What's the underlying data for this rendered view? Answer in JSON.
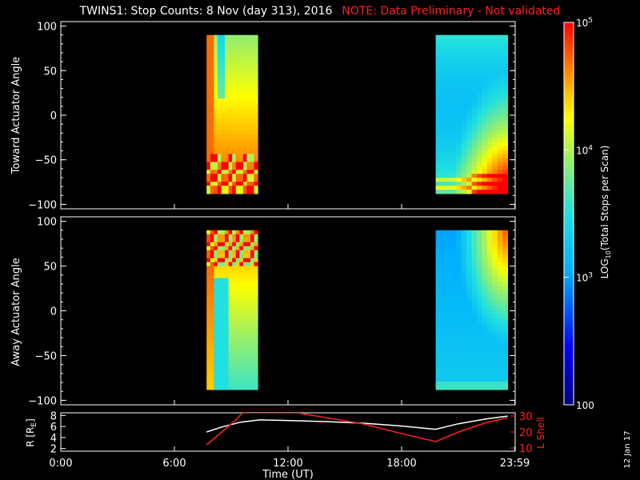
{
  "header": {
    "title": "TWINS1: Stop Counts:  8 Nov (day 313), 2016",
    "note": "NOTE: Data Preliminary - Not validated"
  },
  "side_date": "12 Jan 17",
  "chart_data": [
    {
      "type": "heatmap",
      "panel": "toward",
      "ylabel": "Toward Actuator Angle",
      "ylim": [
        -105,
        105
      ],
      "yticks": [
        "100",
        "50",
        "0",
        "-50",
        "-100"
      ],
      "xlim": [
        0,
        24
      ],
      "blocks": [
        {
          "x_start_hours": 7.7,
          "x_end_hours": 10.4,
          "y_range": [
            -88,
            90
          ],
          "description_levels": "log10 counts ~3.5 top to ~4.9 bottom"
        },
        {
          "x_start_hours": 19.8,
          "x_end_hours": 23.6,
          "y_range": [
            -88,
            90
          ],
          "description_levels": "log10 counts ~3.2 middle to ~4.8 lower-right corner"
        }
      ]
    },
    {
      "type": "heatmap",
      "panel": "away",
      "ylabel": "Away Actuator Angle",
      "ylim": [
        -105,
        105
      ],
      "yticks": [
        "100",
        "50",
        "0",
        "-50",
        "-100"
      ],
      "xlim": [
        0,
        24
      ],
      "blocks": [
        {
          "x_start_hours": 7.7,
          "x_end_hours": 10.4,
          "y_range": [
            -88,
            90
          ],
          "description_levels": "log10 counts ~4.9 top to ~3.4 lower"
        },
        {
          "x_start_hours": 19.8,
          "x_end_hours": 23.6,
          "y_range": [
            -88,
            90
          ],
          "description_levels": "log10 counts ~4.8 upper-right to ~2.9 middle"
        }
      ]
    },
    {
      "type": "line",
      "panel": "ephemeris",
      "ylabel_left": "R [R",
      "ylabel_left_sub": "E",
      "ylabel_left_end": "]",
      "ylabel_right": "L Shell",
      "left_yticks": [
        "8",
        "6",
        "4",
        "2"
      ],
      "right_yticks": [
        "30",
        "20",
        "10"
      ],
      "left_ylim": [
        1.5,
        8.5
      ],
      "right_ylim": [
        8,
        32
      ],
      "xlim": [
        0,
        24
      ],
      "xticks": [
        "0:00",
        "6:00",
        "12:00",
        "18:00",
        "23:59"
      ],
      "xtick_hours": [
        0,
        6,
        12,
        18,
        23.98
      ],
      "xlabel": "Time (UT)",
      "series": [
        {
          "axis": "left",
          "color": "#ffffff",
          "x": [
            7.7,
            8.5,
            9.5,
            10.5,
            12,
            14,
            16,
            18,
            19.8,
            21,
            22.5,
            23.6
          ],
          "y": [
            5.0,
            5.9,
            6.8,
            7.2,
            7.1,
            6.9,
            6.6,
            6.1,
            5.5,
            6.5,
            7.4,
            7.9
          ]
        },
        {
          "axis": "right",
          "color": "#ff2020",
          "x": [
            7.7,
            8.5,
            9.2,
            9.6,
            12.5,
            14,
            16,
            18,
            19.8,
            21,
            22.5,
            23.6
          ],
          "y": [
            12,
            20,
            27,
            32,
            32,
            29,
            25,
            19,
            14,
            20,
            26,
            29
          ]
        }
      ]
    }
  ],
  "colorbar": {
    "label": "LOG",
    "label_sub": "10",
    "label_rest": "(Total Stops per Scan)",
    "ticks": [
      {
        "base": "10",
        "exp": "5",
        "level": 5
      },
      {
        "base": "10",
        "exp": "4",
        "level": 4
      },
      {
        "base": "10",
        "exp": "3",
        "level": 3
      },
      {
        "base": "100",
        "exp": "",
        "level": 2
      }
    ],
    "range": [
      2,
      5
    ]
  }
}
